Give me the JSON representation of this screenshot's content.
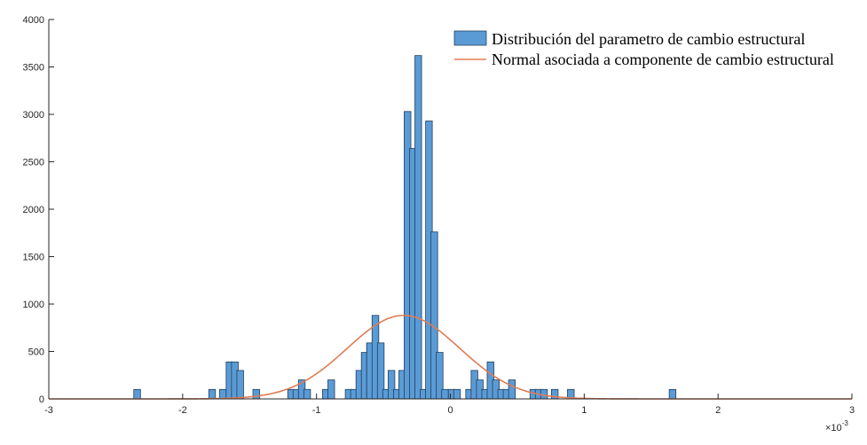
{
  "chart_data": {
    "type": "bar",
    "legend_placement": "top-right",
    "grid": false,
    "colors": {
      "bars": "#5b9bd5",
      "bar_edge": "#1f3f5f",
      "curve": "#e07b54",
      "axis": "#262626"
    },
    "x_multiplier_label": "×10",
    "x_multiplier_exponent": "-3",
    "xlim": [
      -3,
      3
    ],
    "ylim": [
      0,
      4000
    ],
    "x_ticks": [
      -3,
      -2,
      -1,
      0,
      1,
      2,
      3
    ],
    "x_tick_labels": [
      "-3",
      "-2",
      "-1",
      "0",
      "1",
      "2",
      "3"
    ],
    "y_ticks": [
      0,
      500,
      1000,
      1500,
      2000,
      2500,
      3000,
      3500,
      4000
    ],
    "y_tick_labels": [
      "0",
      "500",
      "1000",
      "1500",
      "2000",
      "2500",
      "3000",
      "3500",
      "4000"
    ],
    "bin_width": 0.05,
    "series": [
      {
        "name": "Distribución del parametro de cambio estructural",
        "kind": "histogram",
        "bins": [
          {
            "x": -2.34,
            "y": 100
          },
          {
            "x": -1.78,
            "y": 100
          },
          {
            "x": -1.7,
            "y": 100
          },
          {
            "x": -1.65,
            "y": 390
          },
          {
            "x": -1.61,
            "y": 390
          },
          {
            "x": -1.57,
            "y": 300
          },
          {
            "x": -1.45,
            "y": 100
          },
          {
            "x": -1.19,
            "y": 100
          },
          {
            "x": -1.15,
            "y": 100
          },
          {
            "x": -1.11,
            "y": 200
          },
          {
            "x": -1.07,
            "y": 100
          },
          {
            "x": -0.93,
            "y": 100
          },
          {
            "x": -0.89,
            "y": 200
          },
          {
            "x": -0.76,
            "y": 100
          },
          {
            "x": -0.72,
            "y": 100
          },
          {
            "x": -0.68,
            "y": 300
          },
          {
            "x": -0.64,
            "y": 490
          },
          {
            "x": -0.6,
            "y": 590
          },
          {
            "x": -0.6,
            "y": 590
          },
          {
            "x": -0.56,
            "y": 880
          },
          {
            "x": -0.52,
            "y": 590
          },
          {
            "x": -0.48,
            "y": 100
          },
          {
            "x": -0.44,
            "y": 300
          },
          {
            "x": -0.4,
            "y": 100
          },
          {
            "x": -0.36,
            "y": 300
          },
          {
            "x": -0.32,
            "y": 3030
          },
          {
            "x": -0.28,
            "y": 2640
          },
          {
            "x": -0.24,
            "y": 3620
          },
          {
            "x": -0.2,
            "y": 100
          },
          {
            "x": -0.16,
            "y": 2930
          },
          {
            "x": -0.12,
            "y": 1760
          },
          {
            "x": -0.08,
            "y": 490
          },
          {
            "x": -0.04,
            "y": 100
          },
          {
            "x": 0.01,
            "y": 100
          },
          {
            "x": 0.05,
            "y": 100
          },
          {
            "x": 0.14,
            "y": 100
          },
          {
            "x": 0.18,
            "y": 300
          },
          {
            "x": 0.22,
            "y": 200
          },
          {
            "x": 0.26,
            "y": 100
          },
          {
            "x": 0.3,
            "y": 390
          },
          {
            "x": 0.34,
            "y": 200
          },
          {
            "x": 0.38,
            "y": 100
          },
          {
            "x": 0.42,
            "y": 100
          },
          {
            "x": 0.46,
            "y": 200
          },
          {
            "x": 0.62,
            "y": 100
          },
          {
            "x": 0.66,
            "y": 100
          },
          {
            "x": 0.7,
            "y": 100
          },
          {
            "x": 0.78,
            "y": 100
          },
          {
            "x": 0.9,
            "y": 100
          },
          {
            "x": 1.66,
            "y": 100
          }
        ]
      },
      {
        "name": "Normal asociada a componente de cambio estructural",
        "kind": "line",
        "mean": -0.35,
        "sd": 0.42,
        "peak": 880,
        "x_range": [
          -3,
          3
        ]
      }
    ]
  }
}
